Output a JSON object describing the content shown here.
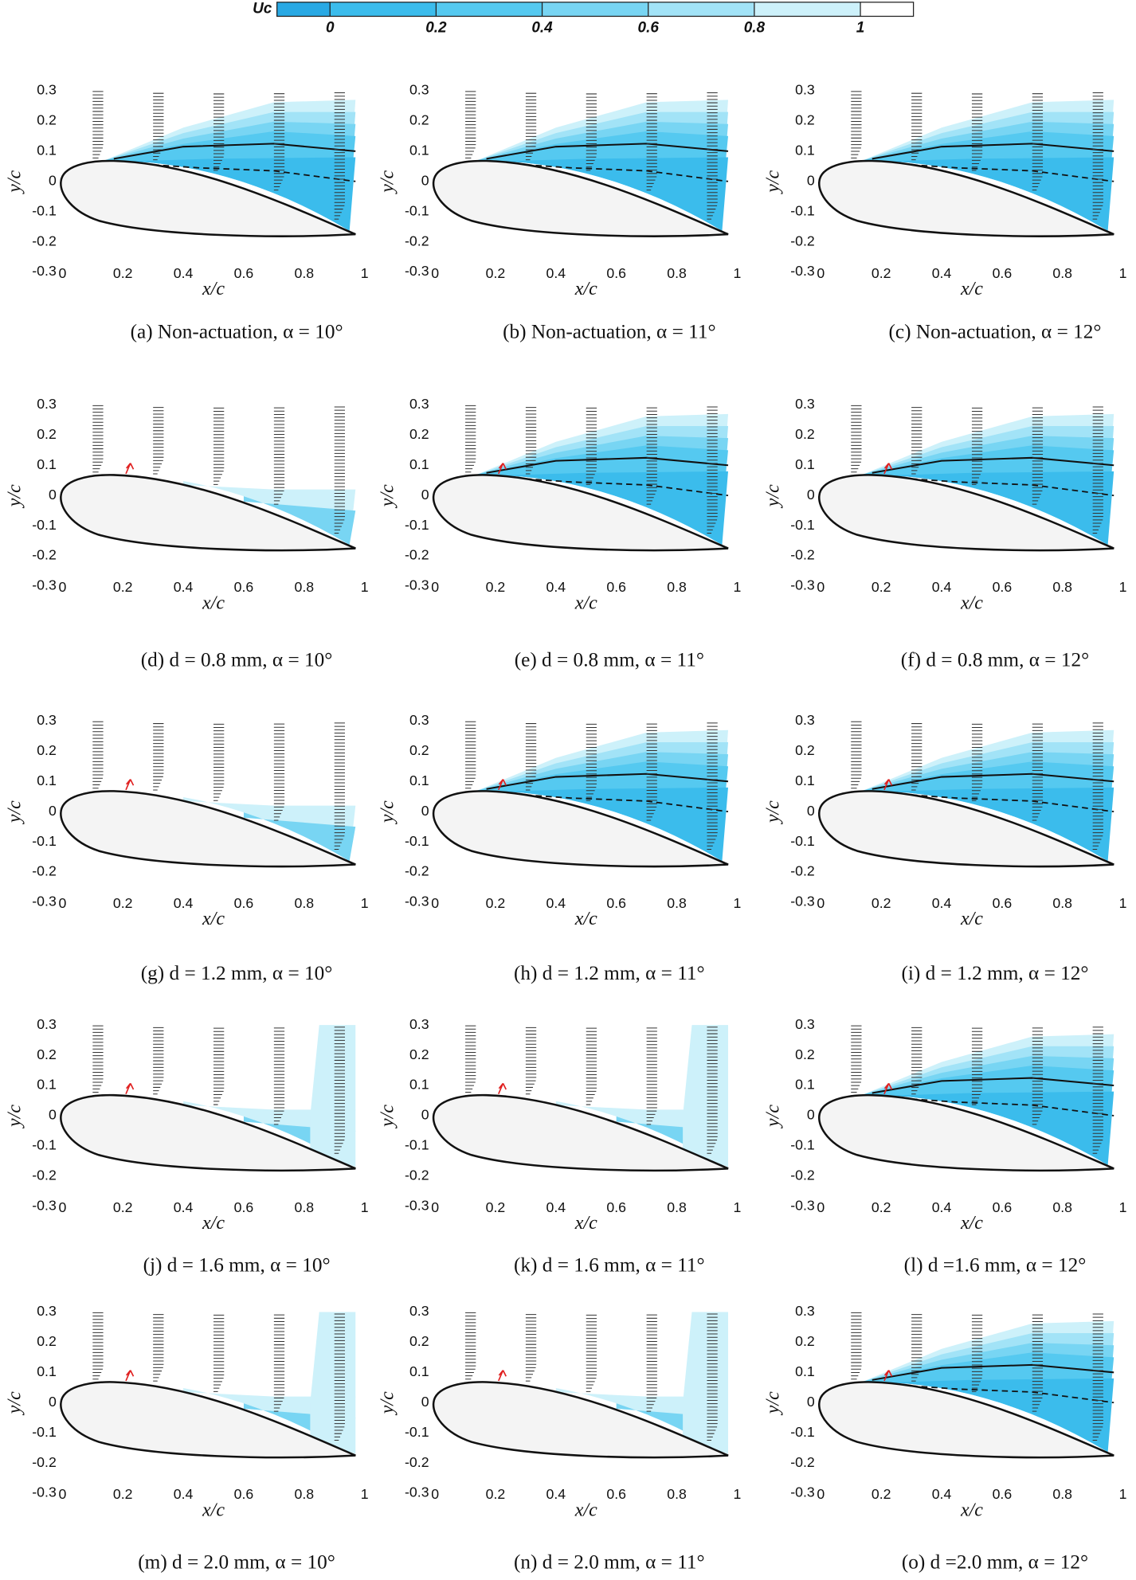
{
  "chart_data": {
    "type": "contour-grid",
    "colorbar": {
      "label": "Uc",
      "lim": [
        -0.1,
        1.1
      ],
      "ticks": [
        0,
        0.2,
        0.4,
        0.6,
        0.8,
        1
      ],
      "colors": [
        "#29a9e4",
        "#3bbcec",
        "#55c9f0",
        "#78d5f3",
        "#a2e3f7",
        "#cdf1fa",
        "#ffffff"
      ]
    },
    "xlabel": "x/c",
    "ylabel": "y/c",
    "xlim": [
      0,
      1
    ],
    "ylim": [
      -0.3,
      0.3
    ],
    "xticks": [
      0,
      0.2,
      0.4,
      0.6,
      0.8,
      1
    ],
    "yticks": [
      -0.3,
      -0.2,
      -0.1,
      0,
      0.1,
      0.2,
      0.3
    ],
    "panels": [
      {
        "caption": "(a) Non-actuation, α = 10°"
      },
      {
        "caption": "(b) Non-actuation, α = 11°"
      },
      {
        "caption": "(c) Non-actuation, α = 12°"
      },
      {
        "caption": "(d) d = 0.8 mm, α = 10°"
      },
      {
        "caption": "(e) d = 0.8 mm, α = 11°"
      },
      {
        "caption": "(f) d = 0.8 mm, α = 12°"
      },
      {
        "caption": "(g) d = 1.2 mm, α = 10°"
      },
      {
        "caption": "(h) d = 1.2 mm, α = 11°"
      },
      {
        "caption": "(i) d = 1.2 mm, α = 12°"
      },
      {
        "caption": "(j) d = 1.6 mm, α = 10°"
      },
      {
        "caption": "(k) d = 1.6 mm, α = 11°"
      },
      {
        "caption": "(l) d =1.6 mm, α = 12°"
      },
      {
        "caption": "(m) d = 2.0 mm, α = 10°"
      },
      {
        "caption": "(n) d = 2.0 mm, α = 11°"
      },
      {
        "caption": "(o) d =2.0 mm, α = 12°"
      }
    ]
  }
}
